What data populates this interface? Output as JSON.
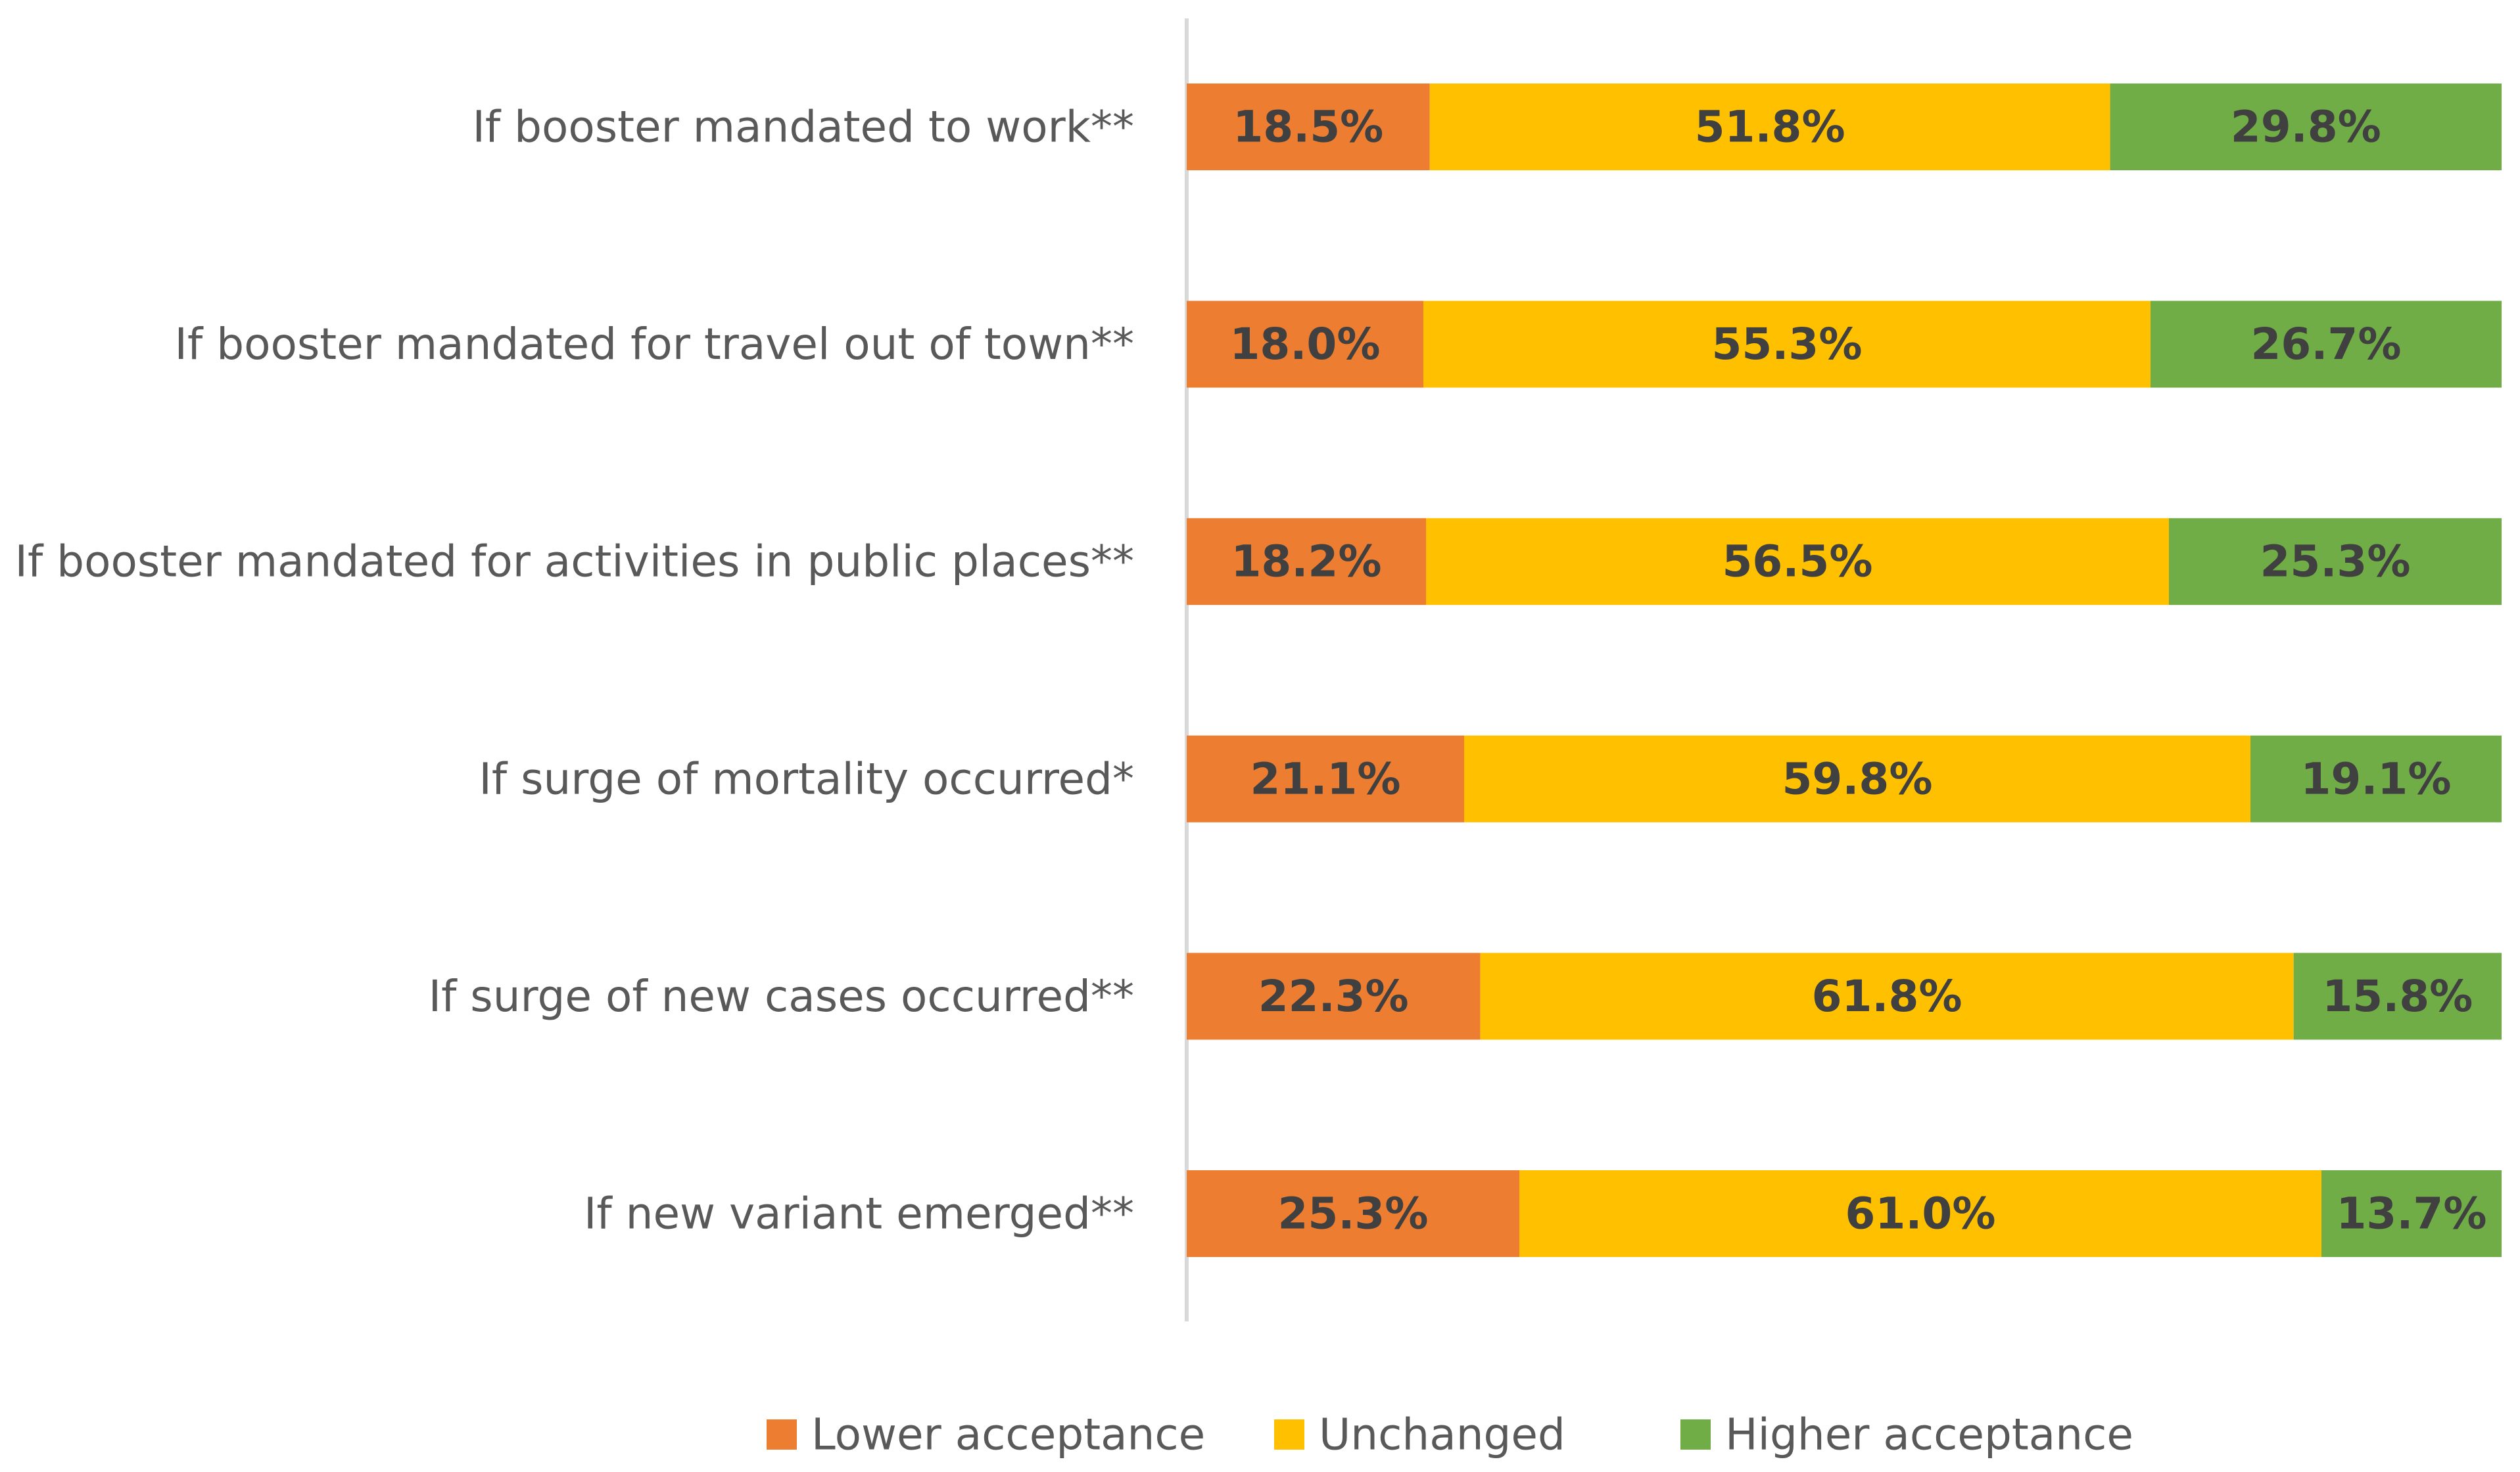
{
  "chart_data": {
    "type": "bar",
    "orientation": "horizontal",
    "stacked": true,
    "percent_stacked": true,
    "title": "",
    "xlabel": "",
    "ylabel": "",
    "xlim": [
      0,
      100
    ],
    "grid": false,
    "legend_position": "bottom",
    "categories": [
      "If booster mandated to work**",
      "If booster mandated for travel out of town**",
      "If booster mandated for activities in public places**",
      "If surge of mortality occurred*",
      "If surge of new cases occurred**",
      "If new variant emerged**"
    ],
    "series": [
      {
        "name": "Lower acceptance",
        "color": "#ED7D31",
        "values": [
          18.5,
          18.0,
          18.2,
          21.1,
          22.3,
          25.3
        ],
        "labels": [
          "18.5%",
          "18.0%",
          "18.2%",
          "21.1%",
          "22.3%",
          "25.3%"
        ]
      },
      {
        "name": "Unchanged",
        "color": "#FFC000",
        "values": [
          51.8,
          55.3,
          56.5,
          59.8,
          61.8,
          61.0
        ],
        "labels": [
          "51.8%",
          "55.3%",
          "56.5%",
          "59.8%",
          "61.8%",
          "61.0%"
        ]
      },
      {
        "name": "Higher acceptance",
        "color": "#70AD47",
        "values": [
          29.8,
          26.7,
          25.3,
          19.1,
          15.8,
          13.7
        ],
        "labels": [
          "29.8%",
          "26.7%",
          "25.3%",
          "19.1%",
          "15.8%",
          "13.7%"
        ]
      }
    ]
  }
}
